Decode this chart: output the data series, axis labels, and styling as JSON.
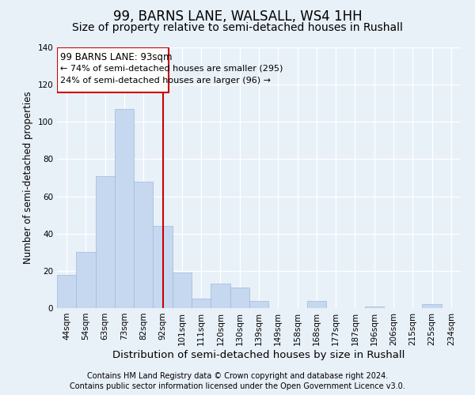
{
  "title": "99, BARNS LANE, WALSALL, WS4 1HH",
  "subtitle": "Size of property relative to semi-detached houses in Rushall",
  "xlabel": "Distribution of semi-detached houses by size in Rushall",
  "ylabel": "Number of semi-detached properties",
  "footer1": "Contains HM Land Registry data © Crown copyright and database right 2024.",
  "footer2": "Contains public sector information licensed under the Open Government Licence v3.0.",
  "categories": [
    "44sqm",
    "54sqm",
    "63sqm",
    "73sqm",
    "82sqm",
    "92sqm",
    "101sqm",
    "111sqm",
    "120sqm",
    "130sqm",
    "139sqm",
    "149sqm",
    "158sqm",
    "168sqm",
    "177sqm",
    "187sqm",
    "196sqm",
    "206sqm",
    "215sqm",
    "225sqm",
    "234sqm"
  ],
  "values": [
    18,
    30,
    71,
    107,
    68,
    44,
    19,
    5,
    13,
    11,
    4,
    0,
    0,
    4,
    0,
    0,
    1,
    0,
    0,
    2,
    0
  ],
  "bar_color": "#c5d8f0",
  "bar_edge_color": "#a0b8d8",
  "marker_bin_index": 5,
  "marker_color": "#cc0000",
  "marker_label": "99 BARNS LANE: 93sqm",
  "annotation_line1": "← 74% of semi-detached houses are smaller (295)",
  "annotation_line2": "24% of semi-detached houses are larger (96) →",
  "box_color": "#cc0000",
  "ylim": [
    0,
    140
  ],
  "yticks": [
    0,
    20,
    40,
    60,
    80,
    100,
    120,
    140
  ],
  "background_color": "#e8f0f8",
  "grid_color": "#ffffff",
  "title_fontsize": 12,
  "subtitle_fontsize": 10,
  "xlabel_fontsize": 9.5,
  "ylabel_fontsize": 8.5,
  "tick_fontsize": 7.5,
  "annotation_fontsize": 8.5,
  "footer_fontsize": 7
}
